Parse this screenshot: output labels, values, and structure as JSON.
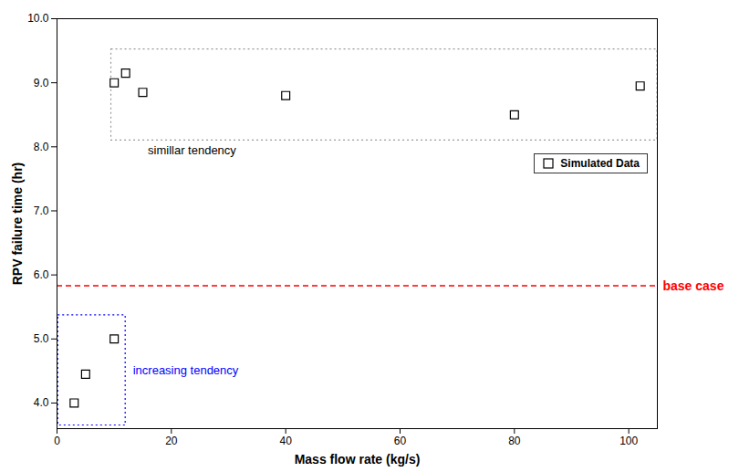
{
  "chart_data": {
    "type": "scatter",
    "xlabel": "Mass flow rate (kg/s)",
    "ylabel": "RPV failure time (hr)",
    "x": [
      3,
      5,
      10,
      10,
      12,
      15,
      40,
      80,
      102
    ],
    "series": [
      {
        "name": "Simulated Data",
        "color": "black",
        "marker": "square",
        "values": [
          4.0,
          4.45,
          5.0,
          9.0,
          9.15,
          8.85,
          8.8,
          8.5,
          8.95
        ]
      }
    ],
    "xlim": [
      0,
      105
    ],
    "ylim": [
      3.6,
      10
    ],
    "xticks": [
      0,
      20,
      40,
      60,
      80,
      100
    ],
    "yticks": [
      4,
      5,
      6,
      7,
      8,
      9,
      10
    ],
    "grid": false,
    "legend": "right",
    "reference_lines": [
      {
        "y": 5.83,
        "label": "base case",
        "color": "red",
        "line_style": "dashed"
      }
    ],
    "regions": [
      {
        "x0": 0.2,
        "y0": 3.65,
        "width": 11.8,
        "height": 1.72,
        "color": "blue",
        "line_style": "dotted",
        "label": "increasing tendency",
        "label_color": "blue"
      },
      {
        "x0": 9.5,
        "y0": 8.1,
        "width": 95.5,
        "height": 1.42,
        "color": "#999999",
        "line_style": "dotted",
        "label": "simillar tendency",
        "label_color": "black"
      }
    ]
  }
}
